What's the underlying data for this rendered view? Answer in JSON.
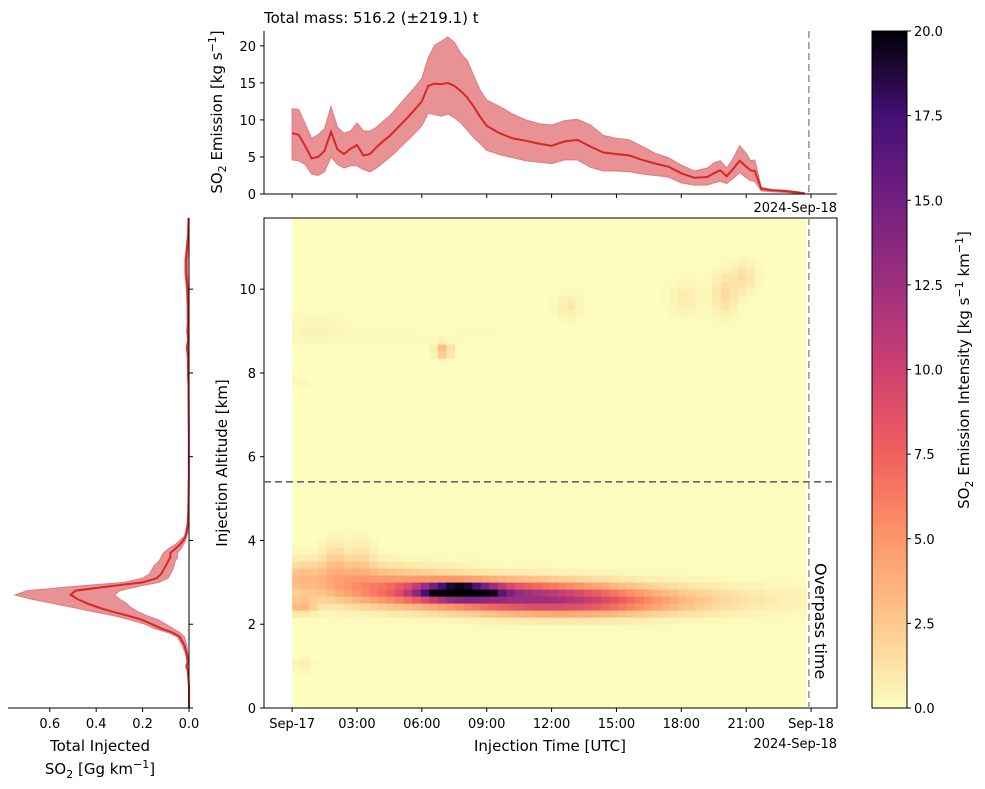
{
  "chart_data": [
    {
      "type": "area",
      "panel": "top",
      "title": "Total mass: 516.2 (±219.1) t",
      "ylabel": "SO2 Emission [kg s-1]",
      "ylabel_parts": {
        "pre": "SO",
        "sub": "2",
        "mid": " Emission [kg s",
        "sup": "−1",
        "post": "]"
      },
      "ylim": [
        0,
        22
      ],
      "yticks": [
        0,
        5,
        10,
        15,
        20
      ],
      "x_date_label": "2024-Sep-18",
      "x_hours": [
        0.0,
        0.3,
        0.6,
        0.9,
        1.2,
        1.5,
        1.8,
        2.1,
        2.4,
        2.7,
        3.0,
        3.3,
        3.6,
        3.9,
        4.2,
        4.5,
        4.8,
        5.1,
        5.4,
        5.7,
        6.0,
        6.3,
        6.6,
        6.9,
        7.2,
        7.5,
        7.8,
        8.1,
        8.4,
        8.7,
        9.0,
        9.6,
        10.2,
        10.8,
        11.4,
        12.0,
        12.6,
        13.2,
        13.8,
        14.4,
        15.0,
        15.6,
        16.2,
        16.8,
        17.4,
        18.0,
        18.6,
        19.2,
        19.5,
        19.8,
        20.1,
        20.4,
        20.7,
        21.0,
        21.2,
        21.4,
        21.7,
        22.2,
        22.8,
        23.4,
        23.7
      ],
      "mean": [
        8.2,
        8.0,
        6.5,
        4.8,
        5.0,
        5.8,
        8.4,
        6.0,
        5.4,
        6.1,
        6.6,
        5.2,
        5.4,
        6.3,
        7.1,
        7.8,
        8.7,
        9.6,
        10.5,
        11.5,
        12.5,
        14.6,
        14.9,
        14.8,
        15.0,
        14.6,
        13.9,
        13.0,
        11.8,
        10.4,
        9.2,
        8.2,
        7.5,
        7.2,
        6.8,
        6.5,
        7.1,
        7.3,
        6.4,
        5.6,
        5.4,
        5.2,
        4.6,
        4.1,
        3.7,
        2.8,
        2.2,
        2.3,
        2.8,
        3.2,
        2.4,
        3.4,
        4.5,
        3.7,
        3.2,
        3.1,
        0.7,
        0.5,
        0.4,
        0.2,
        0.1
      ],
      "upper": [
        11.5,
        11.4,
        9.5,
        7.5,
        8.0,
        8.8,
        11.8,
        9.0,
        8.2,
        8.5,
        9.6,
        8.5,
        8.5,
        9.0,
        9.8,
        10.5,
        11.5,
        12.5,
        13.5,
        14.5,
        15.6,
        18.4,
        20.1,
        20.6,
        21.2,
        20.5,
        19.0,
        18.0,
        16.0,
        14.0,
        12.7,
        11.8,
        10.8,
        10.0,
        9.5,
        9.3,
        9.9,
        10.1,
        9.3,
        7.9,
        7.5,
        7.3,
        6.4,
        5.5,
        4.9,
        3.9,
        3.1,
        3.5,
        4.2,
        4.5,
        3.5,
        4.8,
        6.5,
        5.5,
        4.5,
        4.6,
        0.9,
        0.6,
        0.5,
        0.3,
        0.1
      ],
      "lower": [
        4.6,
        4.5,
        4.0,
        2.7,
        2.5,
        3.0,
        5.0,
        4.0,
        3.5,
        3.8,
        3.8,
        3.3,
        3.0,
        3.5,
        4.2,
        4.9,
        5.7,
        6.6,
        7.4,
        8.3,
        9.2,
        10.9,
        10.7,
        10.5,
        10.8,
        10.3,
        9.6,
        8.6,
        7.6,
        6.8,
        5.9,
        5.3,
        4.9,
        4.5,
        4.3,
        4.1,
        4.6,
        4.6,
        3.6,
        3.1,
        3.1,
        3.0,
        2.7,
        2.5,
        2.3,
        1.5,
        1.2,
        1.2,
        1.5,
        1.7,
        1.4,
        2.1,
        2.9,
        2.2,
        1.8,
        1.7,
        0.4,
        0.3,
        0.2,
        0.1,
        0.0
      ]
    },
    {
      "type": "heatmap",
      "panel": "main",
      "xlabel": "Injection Time [UTC]",
      "ylabel": "Injection Altitude [km]",
      "x_ticklabels": [
        "Sep-17",
        "03:00",
        "06:00",
        "09:00",
        "12:00",
        "15:00",
        "18:00",
        "21:00",
        "Sep-18"
      ],
      "x_tick_hours": [
        0,
        3,
        6,
        9,
        12,
        15,
        18,
        21,
        24
      ],
      "x_date_label": "2024-Sep-18",
      "xlim_hours": [
        -1.3,
        25.2
      ],
      "ylim": [
        0,
        11.7
      ],
      "yticks": [
        0,
        2,
        4,
        6,
        8,
        10
      ],
      "data_x_hours": [
        0,
        23.8
      ],
      "data_y_km": [
        0,
        11.7
      ],
      "horizontal_line_km": 5.4,
      "overpass_hour": 23.9,
      "overpass_label": "Overpass time",
      "blobs": [
        {
          "t": 7.7,
          "z": 2.8,
          "st": 1.2,
          "sz": 0.12,
          "v": 20
        },
        {
          "t": 9.5,
          "z": 2.75,
          "st": 3.5,
          "sz": 0.22,
          "v": 9
        },
        {
          "t": 12.5,
          "z": 2.5,
          "st": 3.2,
          "sz": 0.2,
          "v": 6
        },
        {
          "t": 4.5,
          "z": 2.9,
          "st": 2.5,
          "sz": 0.3,
          "v": 4
        },
        {
          "t": 15.5,
          "z": 2.6,
          "st": 4.5,
          "sz": 0.25,
          "v": 2.2
        },
        {
          "t": 2.0,
          "z": 3.2,
          "st": 1.5,
          "sz": 0.25,
          "v": 2
        },
        {
          "t": 2.0,
          "z": 3.6,
          "st": 0.4,
          "sz": 0.3,
          "v": 1.5
        },
        {
          "t": 3.2,
          "z": 3.6,
          "st": 0.4,
          "sz": 0.3,
          "v": 1.2
        },
        {
          "t": 0.4,
          "z": 2.45,
          "st": 0.5,
          "sz": 0.12,
          "v": 3
        },
        {
          "t": 0.3,
          "z": 3.1,
          "st": 0.5,
          "sz": 0.3,
          "v": 1.5
        },
        {
          "t": 0.5,
          "z": 1.05,
          "st": 0.3,
          "sz": 0.1,
          "v": 0.8
        },
        {
          "t": 7.0,
          "z": 8.55,
          "st": 0.25,
          "sz": 0.12,
          "v": 3.5
        },
        {
          "t": 12.8,
          "z": 9.6,
          "st": 0.4,
          "sz": 0.2,
          "v": 1.0
        },
        {
          "t": 18.2,
          "z": 9.8,
          "st": 0.5,
          "sz": 0.3,
          "v": 0.8
        },
        {
          "t": 20.0,
          "z": 9.9,
          "st": 0.4,
          "sz": 0.35,
          "v": 1.6
        },
        {
          "t": 20.9,
          "z": 10.3,
          "st": 0.4,
          "sz": 0.25,
          "v": 1.4
        },
        {
          "t": 1.2,
          "z": 9.1,
          "st": 1.0,
          "sz": 0.25,
          "v": 0.4
        },
        {
          "t": 0.4,
          "z": 7.8,
          "st": 0.3,
          "sz": 0.08,
          "v": 0.3
        },
        {
          "t": 4.0,
          "z": 8.9,
          "st": 4.0,
          "sz": 0.12,
          "v": 0.2
        }
      ]
    },
    {
      "type": "area",
      "panel": "left",
      "xlabel": "Total Injected SO2 [Gg km-1]",
      "xlabel_line1": "Total Injected",
      "xlabel_line2_parts": {
        "pre": "SO",
        "sub": "2",
        "mid": " [Gg km",
        "sup": "−1",
        "post": "]"
      },
      "xlim": [
        0.78,
        0
      ],
      "xticks": [
        0.6,
        0.4,
        0.2,
        0.0
      ],
      "xticklabels": [
        "0.6",
        "0.4",
        "0.2",
        "0.0"
      ],
      "ylim": [
        0,
        11.7
      ],
      "altitude_km": [
        0.0,
        0.5,
        0.9,
        1.0,
        1.1,
        1.3,
        1.5,
        1.7,
        1.8,
        1.9,
        2.0,
        2.1,
        2.2,
        2.3,
        2.4,
        2.5,
        2.6,
        2.7,
        2.8,
        2.9,
        3.0,
        3.1,
        3.2,
        3.3,
        3.4,
        3.5,
        3.6,
        3.7,
        3.8,
        3.9,
        4.0,
        4.1,
        4.2,
        4.4,
        4.7,
        5.5,
        6.5,
        7.7,
        7.9,
        8.1,
        8.4,
        8.6,
        8.8,
        9.0,
        9.2,
        9.5,
        9.9,
        10.1,
        10.4,
        10.7,
        11.0,
        11.3,
        11.7
      ],
      "mean": [
        0.0,
        0.0,
        0.005,
        0.01,
        0.005,
        0.01,
        0.02,
        0.04,
        0.07,
        0.12,
        0.16,
        0.2,
        0.26,
        0.33,
        0.39,
        0.44,
        0.48,
        0.51,
        0.49,
        0.35,
        0.2,
        0.14,
        0.12,
        0.11,
        0.1,
        0.09,
        0.08,
        0.08,
        0.06,
        0.04,
        0.025,
        0.015,
        0.01,
        0.005,
        0.003,
        0.001,
        0.001,
        0.002,
        0.004,
        0.004,
        0.005,
        0.008,
        0.004,
        0.006,
        0.004,
        0.004,
        0.006,
        0.008,
        0.012,
        0.012,
        0.008,
        0.004,
        0.002
      ],
      "upper": [
        0.0,
        0.0,
        0.008,
        0.015,
        0.008,
        0.015,
        0.03,
        0.05,
        0.09,
        0.15,
        0.19,
        0.25,
        0.32,
        0.41,
        0.5,
        0.59,
        0.68,
        0.75,
        0.7,
        0.5,
        0.28,
        0.2,
        0.17,
        0.16,
        0.15,
        0.13,
        0.12,
        0.11,
        0.09,
        0.06,
        0.04,
        0.02,
        0.015,
        0.008,
        0.005,
        0.002,
        0.002,
        0.003,
        0.006,
        0.006,
        0.007,
        0.012,
        0.006,
        0.01,
        0.008,
        0.008,
        0.01,
        0.013,
        0.018,
        0.018,
        0.012,
        0.006,
        0.003
      ],
      "lower": [
        0.0,
        0.0,
        0.002,
        0.005,
        0.002,
        0.005,
        0.01,
        0.02,
        0.04,
        0.07,
        0.1,
        0.13,
        0.18,
        0.22,
        0.25,
        0.27,
        0.3,
        0.32,
        0.3,
        0.22,
        0.13,
        0.09,
        0.08,
        0.07,
        0.065,
        0.06,
        0.05,
        0.05,
        0.035,
        0.025,
        0.015,
        0.01,
        0.005,
        0.002,
        0.001,
        0.0,
        0.0,
        0.001,
        0.002,
        0.002,
        0.003,
        0.004,
        0.002,
        0.003,
        0.002,
        0.002,
        0.003,
        0.004,
        0.006,
        0.006,
        0.004,
        0.002,
        0.001
      ]
    },
    {
      "type": "colorbar",
      "panel": "colorbar",
      "label": "SO2 Emission Intensity [kg s-1 km-1]",
      "label_parts": {
        "pre": "SO",
        "sub": "2",
        "mid": " Emission Intensity [kg s",
        "sup1": "−1",
        "mid2": " km",
        "sup2": "−1",
        "post": "]"
      },
      "colormap": "magma_r",
      "range": [
        0.0,
        20.0
      ],
      "ticks": [
        0.0,
        2.5,
        5.0,
        7.5,
        10.0,
        12.5,
        15.0,
        17.5,
        20.0
      ],
      "ticklabels": [
        "0.0",
        "2.5",
        "5.0",
        "7.5",
        "10.0",
        "12.5",
        "15.0",
        "17.5",
        "20.0"
      ]
    }
  ],
  "colors": {
    "line": "#d62728",
    "band": "#e88c8f",
    "hline": "#666666",
    "overpass": "#999999",
    "overpass_text": "#888888"
  }
}
